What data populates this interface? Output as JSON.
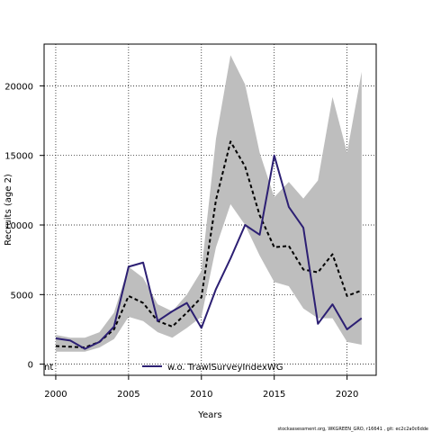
{
  "chart_data": {
    "type": "line",
    "title": "",
    "xlabel": "Years",
    "ylabel": "Recruits (age 2)",
    "xlim": [
      1999.2,
      2022
    ],
    "ylim": [
      -800,
      23000
    ],
    "xticks": [
      2000,
      2005,
      2010,
      2015,
      2020
    ],
    "xtick_labels": [
      "2000",
      "2005",
      "2010",
      "2015",
      "2020"
    ],
    "yticks": [
      0,
      5000,
      10000,
      15000,
      20000
    ],
    "ytick_labels": [
      "0",
      "5000",
      "10000",
      "15000",
      "20000"
    ],
    "grid": true,
    "x": [
      2000,
      2001,
      2002,
      2003,
      2004,
      2005,
      2006,
      2007,
      2008,
      2009,
      2010,
      2011,
      2012,
      2013,
      2014,
      2015,
      2016,
      2017,
      2018,
      2019,
      2020,
      2021
    ],
    "band": {
      "upper": [
        2100,
        1900,
        1900,
        2300,
        3700,
        7000,
        6200,
        4300,
        3800,
        5000,
        6700,
        16200,
        22200,
        20100,
        15200,
        12000,
        13100,
        11900,
        13200,
        19200,
        15200,
        21000
      ],
      "lower": [
        900,
        900,
        900,
        1200,
        1800,
        3400,
        3100,
        2300,
        1900,
        2600,
        3400,
        8400,
        11500,
        10000,
        7800,
        5900,
        5600,
        4000,
        3300,
        3300,
        1600,
        1400
      ],
      "color": "#bebebe"
    },
    "series": [
      {
        "name": "",
        "style": "dashed",
        "color": "#000000",
        "values": [
          1300,
          1250,
          1200,
          1600,
          2500,
          4900,
          4400,
          3100,
          2700,
          3700,
          4800,
          11800,
          16000,
          14200,
          10700,
          8400,
          8500,
          6800,
          6600,
          7900,
          4900,
          5300
        ]
      },
      {
        "name": "w.o. TrawlSurveyIndexWG",
        "style": "solid",
        "color": "#2c1f73",
        "values": [
          1850,
          1700,
          1100,
          1600,
          2700,
          7000,
          7300,
          3100,
          3800,
          4400,
          2600,
          5400,
          7600,
          10000,
          9300,
          15000,
          11300,
          9800,
          2900,
          4300,
          2500,
          3300
        ]
      }
    ],
    "legend": {
      "placement": "bottom-center",
      "entries": [
        {
          "label": "nt",
          "color": "#000000",
          "style": "none"
        },
        {
          "label": "w.o. TrawlSurveyIndexWG",
          "color": "#2c1f73",
          "style": "solid"
        }
      ]
    },
    "footer": "stockassessment.org, WKGREEN_GRO, r16641 , git: ec2c2a0c6dde"
  }
}
